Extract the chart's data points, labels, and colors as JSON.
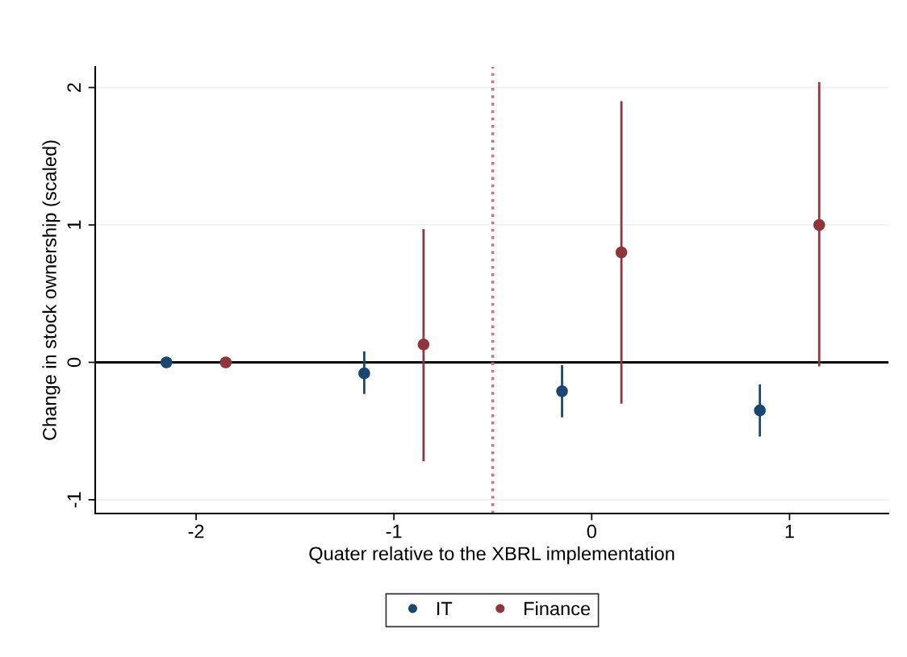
{
  "chart_data": {
    "type": "scatter",
    "xlabel": "Quater relative to the XBRL implementation",
    "ylabel": "Change in stock ownership (scaled)",
    "xlim": [
      -2.51,
      1.5
    ],
    "xticks": [
      -2,
      -1,
      0,
      1
    ],
    "ylim": [
      -1.1,
      2.15
    ],
    "yticks": [
      -1,
      0,
      1,
      2
    ],
    "grid": "y",
    "legend": "bottom",
    "marker": "circle",
    "series": [
      {
        "name": "IT",
        "color": "#1a476f",
        "x": [
          -2.15,
          -1.15,
          -0.15,
          0.85
        ],
        "values": [
          0,
          -0.08,
          -0.21,
          -0.35
        ],
        "errors": [
          null,
          [
            -0.23,
            0.08
          ],
          [
            -0.4,
            -0.02
          ],
          [
            -0.54,
            -0.16
          ]
        ]
      },
      {
        "name": "Finance",
        "color": "#90353b",
        "x": [
          -1.85,
          -0.85,
          0.15,
          1.15
        ],
        "values": [
          0,
          0.13,
          0.8,
          1.0
        ],
        "errors": [
          null,
          [
            -0.72,
            0.97
          ],
          [
            -0.3,
            1.9
          ],
          [
            -0.03,
            2.04
          ]
        ]
      }
    ],
    "ref_lines": [
      {
        "axis": "y",
        "value": 0,
        "color": "#000000",
        "line_style": "solid"
      },
      {
        "axis": "x",
        "value": -0.5,
        "color": "#e06a87",
        "line_style": "dotted"
      }
    ]
  }
}
